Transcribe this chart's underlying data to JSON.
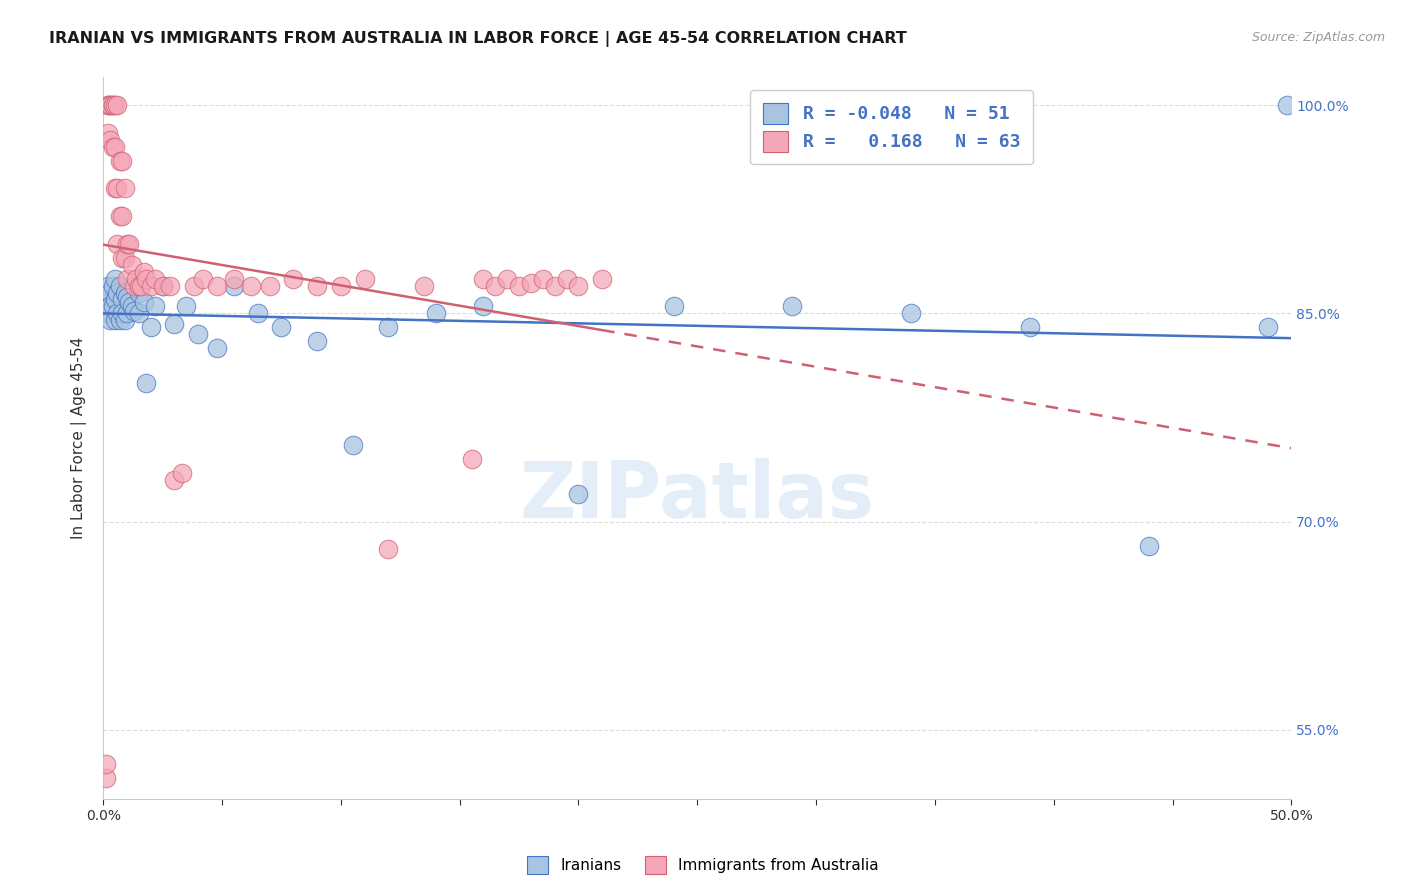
{
  "title": "IRANIAN VS IMMIGRANTS FROM AUSTRALIA IN LABOR FORCE | AGE 45-54 CORRELATION CHART",
  "source": "Source: ZipAtlas.com",
  "ylabel": "In Labor Force | Age 45-54",
  "xlim": [
    0.0,
    0.5
  ],
  "ylim": [
    0.5,
    1.02
  ],
  "yticks_right": [
    0.55,
    0.7,
    0.85,
    1.0
  ],
  "ytick_right_labels": [
    "55.0%",
    "70.0%",
    "85.0%",
    "100.0%"
  ],
  "legend_label_blue": "Iranians",
  "legend_label_pink": "Immigrants from Australia",
  "blue_color": "#a8c4e0",
  "pink_color": "#f4a7b9",
  "blue_line_color": "#4472c4",
  "pink_line_color": "#d06070",
  "watermark": "ZIPatlas",
  "blue_scatter_x": [
    0.001,
    0.002,
    0.002,
    0.003,
    0.003,
    0.003,
    0.004,
    0.004,
    0.005,
    0.005,
    0.005,
    0.006,
    0.006,
    0.007,
    0.007,
    0.008,
    0.008,
    0.009,
    0.009,
    0.01,
    0.01,
    0.011,
    0.012,
    0.013,
    0.015,
    0.015,
    0.017,
    0.018,
    0.02,
    0.022,
    0.025,
    0.03,
    0.035,
    0.04,
    0.048,
    0.055,
    0.065,
    0.075,
    0.09,
    0.105,
    0.12,
    0.14,
    0.16,
    0.2,
    0.24,
    0.29,
    0.34,
    0.39,
    0.44,
    0.49,
    0.498
  ],
  "blue_scatter_y": [
    0.855,
    0.87,
    0.85,
    0.865,
    0.855,
    0.845,
    0.87,
    0.855,
    0.875,
    0.86,
    0.845,
    0.865,
    0.85,
    0.87,
    0.845,
    0.86,
    0.85,
    0.865,
    0.845,
    0.862,
    0.85,
    0.858,
    0.855,
    0.852,
    0.865,
    0.85,
    0.858,
    0.8,
    0.84,
    0.855,
    0.87,
    0.842,
    0.855,
    0.835,
    0.825,
    0.87,
    0.85,
    0.84,
    0.83,
    0.755,
    0.84,
    0.85,
    0.855,
    0.72,
    0.855,
    0.855,
    0.85,
    0.84,
    0.682,
    0.84,
    1.0
  ],
  "pink_scatter_x": [
    0.001,
    0.001,
    0.002,
    0.002,
    0.002,
    0.003,
    0.003,
    0.003,
    0.004,
    0.004,
    0.004,
    0.005,
    0.005,
    0.005,
    0.006,
    0.006,
    0.006,
    0.007,
    0.007,
    0.008,
    0.008,
    0.008,
    0.009,
    0.009,
    0.01,
    0.01,
    0.011,
    0.012,
    0.013,
    0.014,
    0.015,
    0.016,
    0.017,
    0.018,
    0.02,
    0.022,
    0.025,
    0.028,
    0.03,
    0.033,
    0.038,
    0.042,
    0.048,
    0.055,
    0.062,
    0.07,
    0.08,
    0.09,
    0.1,
    0.11,
    0.12,
    0.135,
    0.155,
    0.16,
    0.165,
    0.17,
    0.175,
    0.18,
    0.185,
    0.19,
    0.195,
    0.2,
    0.21
  ],
  "pink_scatter_y": [
    0.515,
    0.525,
    1.0,
    1.0,
    0.98,
    1.0,
    1.0,
    0.975,
    1.0,
    1.0,
    0.97,
    1.0,
    0.97,
    0.94,
    1.0,
    0.94,
    0.9,
    0.96,
    0.92,
    0.96,
    0.92,
    0.89,
    0.94,
    0.89,
    0.9,
    0.875,
    0.9,
    0.885,
    0.87,
    0.875,
    0.87,
    0.87,
    0.88,
    0.875,
    0.87,
    0.875,
    0.87,
    0.87,
    0.73,
    0.735,
    0.87,
    0.875,
    0.87,
    0.875,
    0.87,
    0.87,
    0.875,
    0.87,
    0.87,
    0.875,
    0.68,
    0.87,
    0.745,
    0.875,
    0.87,
    0.875,
    0.87,
    0.872,
    0.875,
    0.87,
    0.875,
    0.87,
    0.875
  ],
  "grid_color": "#dddddd",
  "background_color": "#ffffff"
}
